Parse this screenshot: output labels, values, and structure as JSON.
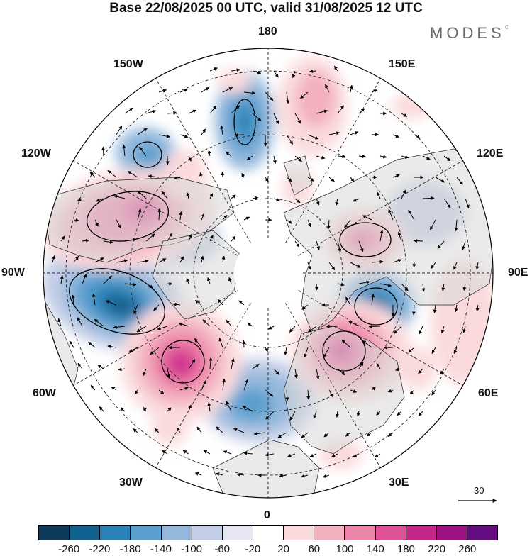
{
  "title": "Base 22/08/2025 00 UTC, valid 31/08/2025 12 UTC",
  "brand": "MODES",
  "brand_mark": "©",
  "lon_labels": {
    "l180": "180",
    "l150e": "150E",
    "l120e": "120E",
    "l90e": "90E",
    "l60e": "60E",
    "l30e": "30E",
    "l0": "0",
    "l30w": "30W",
    "l60w": "60W",
    "l90w": "90W",
    "l120w": "120W",
    "l150w": "150W"
  },
  "reference_vector": "30",
  "colorbar": {
    "colors": [
      "#0e3a5c",
      "#12618e",
      "#2a82b8",
      "#5a9fce",
      "#93b8dc",
      "#c2cde6",
      "#e6e6f2",
      "#ffffff",
      "#fadadc",
      "#f3b0bf",
      "#ec85a9",
      "#e05097",
      "#c62689",
      "#9e1183",
      "#640d80"
    ],
    "ticks": [
      "-260",
      "-220",
      "-180",
      "-140",
      "-100",
      "-60",
      "-20",
      "20",
      "60",
      "100",
      "140",
      "180",
      "220",
      "260"
    ]
  }
}
